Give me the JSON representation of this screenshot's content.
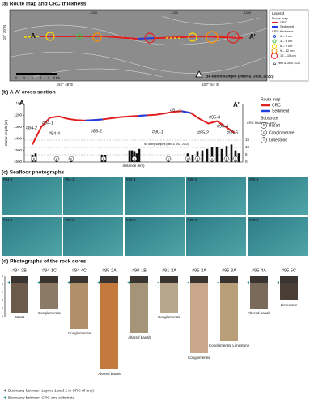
{
  "panel_a": {
    "title": "(a) Route map and CRC thickness",
    "lat_label": "19° 30′ N",
    "lon_labels": [
      "157° 48′ E",
      "157° 54′ E"
    ],
    "contour_labels": [
      "-1500",
      "-1300",
      "-1300"
    ],
    "point_a": "A",
    "point_a2": "A′",
    "scale_labels": [
      "0",
      "1",
      "2",
      "3",
      "4",
      "5 km"
    ],
    "be_note": "Be-dated sample (Hino & Usui, 2022)",
    "legend": {
      "title": "Legend",
      "route": "Route map",
      "crc": "CRC",
      "sediment": "Sediment",
      "thickness": "CRC thickness",
      "classes": [
        "0 – 3 cm",
        "3 – 6 cm",
        "6 – 9 cm",
        "9 – 12 cm",
        "12 – 15 cm"
      ],
      "be_item": "Hino & Usui, 2022"
    }
  },
  "panel_b": {
    "title": "(b) A-A′ cross section",
    "y_label": "Water depth (m)",
    "y2_label": "CRC thickness (cm)",
    "x_label": "distance (km)",
    "ylim": [
      1600,
      1100
    ],
    "yticks": [
      1100,
      1200,
      1300,
      1400,
      1500,
      1600
    ],
    "y2lim": [
      0,
      40
    ],
    "y2ticks": [
      0,
      5,
      10,
      15
    ],
    "point_a": "A",
    "point_a2": "A′",
    "profile": [
      1450,
      1300,
      1220,
      1210,
      1230,
      1240,
      1245,
      1240,
      1235,
      1225,
      1215,
      1210,
      1205,
      1200,
      1195,
      1185,
      1170,
      1165,
      1180,
      1230,
      1270,
      1250,
      1300,
      1350
    ],
    "thickness": [
      5,
      6,
      3,
      3,
      5,
      5,
      8,
      8,
      7,
      6,
      9,
      3,
      6,
      5,
      7,
      8,
      9,
      10,
      10,
      9,
      11,
      12,
      8,
      6
    ],
    "stations": [
      "#84-2",
      "#84-1",
      "#84-4",
      "#85-2",
      "#90-1",
      "#91-2",
      "#95-2",
      "#95-3",
      "#95-4",
      "#95-5"
    ],
    "substrates": [
      "b",
      "c",
      "c",
      "b",
      "b",
      "c",
      "c",
      "b",
      "c",
      "b",
      "l"
    ],
    "no_dating": "No dating samples (Hino & Usui, 2022)",
    "legend": {
      "route": "Route map",
      "crc": "CRC",
      "sediment": "Sediment",
      "substrate": "Substrate",
      "items": [
        {
          "symbol": "b",
          "label": "Basalt"
        },
        {
          "symbol": "c",
          "label": "Conglomerate"
        },
        {
          "symbol": "l",
          "label": "Limestone"
        }
      ]
    }
  },
  "panel_c": {
    "title": "(c) Seafloor photographs",
    "photos": [
      "#84-2",
      "#84-1",
      "#84-4",
      "#85-2",
      "#90-1",
      "#91-2",
      "#95-2",
      "#95-3",
      "#95-4",
      "#95-5"
    ]
  },
  "panel_d": {
    "title": "(d) Photographs of the rock cores",
    "cores": [
      {
        "id": "#84-2B",
        "caption": "Basalt"
      },
      {
        "id": "#84-1C",
        "caption": "Conglomerate"
      },
      {
        "id": "#84-4C",
        "caption": "Conglomerate"
      },
      {
        "id": "#85-2A",
        "caption": "Altered basalt"
      },
      {
        "id": "#90-1B",
        "caption": "Altered basalt"
      },
      {
        "id": "#91-2A",
        "caption": "Conglomerate"
      },
      {
        "id": "#95-2A",
        "caption": "Conglomerate"
      },
      {
        "id": "#95-3A",
        "caption": "Conglomerate Limestone"
      },
      {
        "id": "#95-4A",
        "caption": "Altered basalt"
      },
      {
        "id": "#95-5C",
        "caption": "Limestone"
      }
    ],
    "legend": [
      "Boundary between Layers 1 and 2 in CRC (if any)",
      "Boundary between CRC and substrate"
    ],
    "scale_labels": [
      "0",
      "1",
      "2",
      "3",
      "4",
      "5"
    ]
  }
}
